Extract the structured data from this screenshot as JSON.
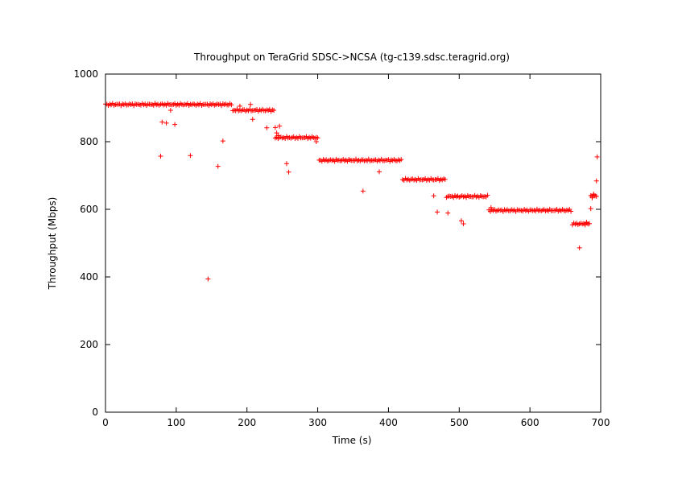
{
  "chart_data": {
    "type": "scatter",
    "title": "Throughput on TeraGrid SDSC->NCSA (tg-c139.sdsc.teragrid.org)",
    "xlabel": "Time (s)",
    "ylabel": "Throughput (Mbps)",
    "xlim": [
      0,
      700
    ],
    "ylim": [
      0,
      1000
    ],
    "xticks": [
      0,
      100,
      200,
      300,
      400,
      500,
      600,
      700
    ],
    "yticks": [
      0,
      200,
      400,
      600,
      800,
      1000
    ],
    "grid": false,
    "legend": "none",
    "marker": "+",
    "color": "#ff0000",
    "segments": [
      {
        "x_start": 0,
        "x_end": 178,
        "step": 2,
        "y": 910
      },
      {
        "x_start": 180,
        "x_end": 238,
        "step": 2,
        "y": 893
      },
      {
        "x_start": 240,
        "x_end": 300,
        "step": 2,
        "y": 812
      },
      {
        "x_start": 302,
        "x_end": 418,
        "step": 2,
        "y": 745
      },
      {
        "x_start": 420,
        "x_end": 480,
        "step": 2,
        "y": 688
      },
      {
        "x_start": 482,
        "x_end": 540,
        "step": 2,
        "y": 638
      },
      {
        "x_start": 542,
        "x_end": 658,
        "step": 2,
        "y": 597
      },
      {
        "x_start": 660,
        "x_end": 684,
        "step": 2,
        "y": 557
      },
      {
        "x_start": 686,
        "x_end": 694,
        "step": 2,
        "y": 640
      }
    ],
    "outliers": [
      {
        "x": 78,
        "y": 757
      },
      {
        "x": 80,
        "y": 858
      },
      {
        "x": 86,
        "y": 855
      },
      {
        "x": 92,
        "y": 893
      },
      {
        "x": 98,
        "y": 851
      },
      {
        "x": 120,
        "y": 759
      },
      {
        "x": 145,
        "y": 394
      },
      {
        "x": 159,
        "y": 727
      },
      {
        "x": 166,
        "y": 802
      },
      {
        "x": 190,
        "y": 905
      },
      {
        "x": 205,
        "y": 910
      },
      {
        "x": 208,
        "y": 866
      },
      {
        "x": 228,
        "y": 841
      },
      {
        "x": 240,
        "y": 842
      },
      {
        "x": 242,
        "y": 826
      },
      {
        "x": 244,
        "y": 818
      },
      {
        "x": 246,
        "y": 846
      },
      {
        "x": 256,
        "y": 735
      },
      {
        "x": 259,
        "y": 710
      },
      {
        "x": 298,
        "y": 800
      },
      {
        "x": 364,
        "y": 654
      },
      {
        "x": 387,
        "y": 711
      },
      {
        "x": 464,
        "y": 640
      },
      {
        "x": 469,
        "y": 592
      },
      {
        "x": 484,
        "y": 589
      },
      {
        "x": 503,
        "y": 566
      },
      {
        "x": 506,
        "y": 557
      },
      {
        "x": 545,
        "y": 605
      },
      {
        "x": 670,
        "y": 486
      },
      {
        "x": 680,
        "y": 562
      },
      {
        "x": 686,
        "y": 602
      },
      {
        "x": 688,
        "y": 634
      },
      {
        "x": 690,
        "y": 645
      },
      {
        "x": 694,
        "y": 684
      },
      {
        "x": 695,
        "y": 755
      }
    ]
  }
}
